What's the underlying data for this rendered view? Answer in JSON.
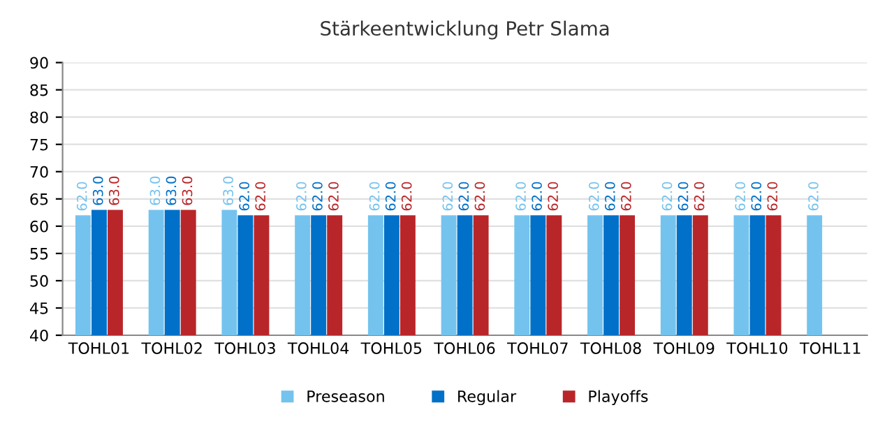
{
  "chart_data": {
    "type": "bar",
    "title": "Stärkeentwicklung Petr Slama",
    "categories": [
      "TOHL01",
      "TOHL02",
      "TOHL03",
      "TOHL04",
      "TOHL05",
      "TOHL06",
      "TOHL07",
      "TOHL08",
      "TOHL09",
      "TOHL10",
      "TOHL11"
    ],
    "series": [
      {
        "name": "Preseason",
        "color": "#74c3ee",
        "values": [
          62,
          63,
          63,
          62,
          62,
          62,
          62,
          62,
          62,
          62,
          62
        ],
        "value_labels": [
          "62.0",
          "63.0",
          "63.0",
          "62.0",
          "62.0",
          "62.0",
          "62.0",
          "62.0",
          "62.0",
          "62.0",
          "62.0"
        ]
      },
      {
        "name": "Regular",
        "color": "#0070c8",
        "values": [
          63,
          63,
          62,
          62,
          62,
          62,
          62,
          62,
          62,
          62,
          null
        ],
        "value_labels": [
          "63.0",
          "63.0",
          "62.0",
          "62.0",
          "62.0",
          "62.0",
          "62.0",
          "62.0",
          "62.0",
          "62.0",
          null
        ]
      },
      {
        "name": "Playoffs",
        "color": "#b92629",
        "values": [
          63,
          63,
          62,
          62,
          62,
          62,
          62,
          62,
          62,
          62,
          null
        ],
        "value_labels": [
          "63.0",
          "63.0",
          "62.0",
          "62.0",
          "62.0",
          "62.0",
          "62.0",
          "62.0",
          "62.0",
          "62.0",
          null
        ]
      }
    ],
    "ylim": [
      40,
      90
    ],
    "yticks": [
      40,
      45,
      50,
      55,
      60,
      65,
      70,
      75,
      80,
      85,
      90
    ],
    "grid": "y",
    "legend": "bottom"
  }
}
